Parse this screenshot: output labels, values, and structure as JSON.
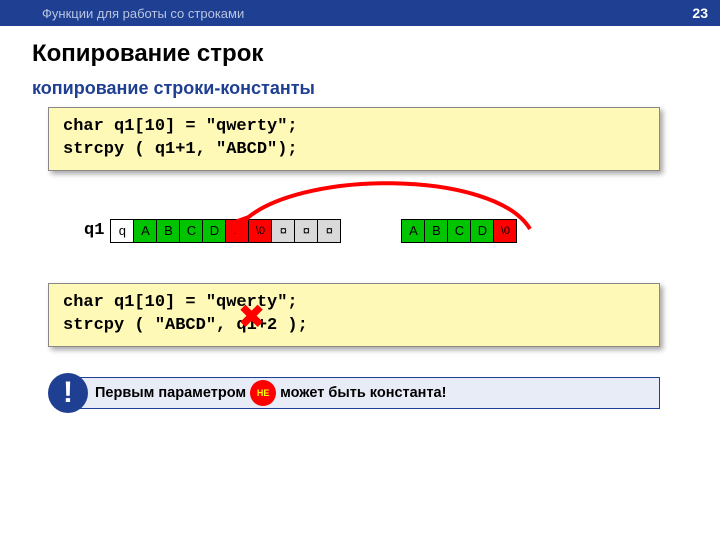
{
  "header": {
    "breadcrumb": "Функции для работы со строками",
    "page": "23"
  },
  "title": "Копирование строк",
  "subtitle": "копирование строки-константы",
  "code1": {
    "line1": "char q1[10] = \"qwerty\";",
    "line2": "strcpy ( q1+1, \"ABCD\");"
  },
  "array": {
    "label": "q1",
    "left": [
      {
        "v": "q",
        "c": "c-white"
      },
      {
        "v": "A",
        "c": "c-green"
      },
      {
        "v": "B",
        "c": "c-green"
      },
      {
        "v": "C",
        "c": "c-green"
      },
      {
        "v": "D",
        "c": "c-green"
      },
      {
        "v": "\\0",
        "c": "c-red"
      },
      {
        "v": "\\0",
        "c": "c-red"
      },
      {
        "v": "¤",
        "c": "c-gray"
      },
      {
        "v": "¤",
        "c": "c-gray"
      },
      {
        "v": "¤",
        "c": "c-gray"
      }
    ],
    "right": [
      {
        "v": "A",
        "c": "c-green"
      },
      {
        "v": "B",
        "c": "c-green"
      },
      {
        "v": "C",
        "c": "c-green"
      },
      {
        "v": "D",
        "c": "c-green"
      },
      {
        "v": "\\0",
        "c": "c-red"
      }
    ]
  },
  "code2": {
    "line1": "char q1[10] = \"qwerty\";",
    "line2": "strcpy ( \"ABCD\", q1+2 );"
  },
  "warning": {
    "excl": "!",
    "text_before": "Первым параметром",
    "ne": "НЕ",
    "text_after": "может быть константа!"
  },
  "style": {
    "header_bg": "#1f3f93",
    "code_bg": "#fff9b8",
    "green": "#00c400",
    "red": "#ff0000",
    "gray": "#d9d9d9",
    "cross": "✖"
  }
}
